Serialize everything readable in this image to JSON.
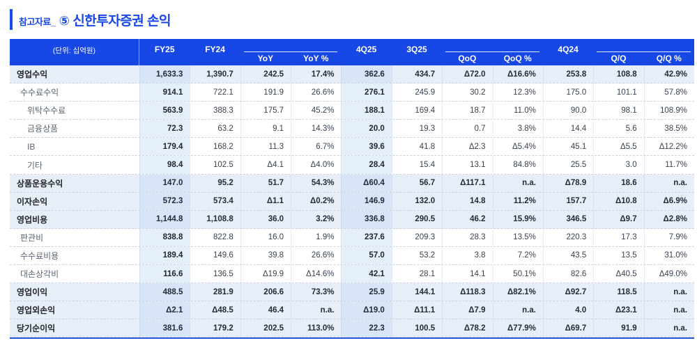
{
  "title": {
    "prefix": "참고자료_",
    "badge": "⑤",
    "main": "신한투자증권 손익"
  },
  "colors": {
    "accent": "#1747e5",
    "row_highlight": "#e8eef8",
    "column_tint": "#dbe8f7",
    "row_border": "#c9d3e0"
  },
  "table": {
    "unit_label": "(단위: 십억원)",
    "header_cells": [
      {
        "type": "plain",
        "labels": [
          "FY25"
        ]
      },
      {
        "type": "plain",
        "labels": [
          "FY24"
        ]
      },
      {
        "type": "group",
        "labels": [
          "YoY",
          "YoY %"
        ]
      },
      {
        "type": "plain",
        "labels": [
          "4Q25"
        ]
      },
      {
        "type": "plain",
        "labels": [
          "3Q25"
        ]
      },
      {
        "type": "group",
        "labels": [
          "QoQ",
          "QoQ %"
        ]
      },
      {
        "type": "plain",
        "labels": [
          "4Q24"
        ]
      },
      {
        "type": "group",
        "labels": [
          "Q/Q",
          "Q/Q %"
        ]
      }
    ],
    "column_keys": [
      "fy25",
      "fy24",
      "yoy",
      "yoy-pct",
      "4q25",
      "3q25",
      "qoq",
      "qoq-pct",
      "4q24",
      "qq",
      "qq-pct"
    ],
    "tinted_column_indexes": [
      0,
      4
    ],
    "rows": [
      {
        "label": "영업수익",
        "indent": 0,
        "highlight": true,
        "values": [
          "1,633.3",
          "1,390.7",
          "242.5",
          "17.4%",
          "362.6",
          "434.7",
          "Δ72.0",
          "Δ16.6%",
          "253.8",
          "108.8",
          "42.9%"
        ]
      },
      {
        "label": "수수료수익",
        "indent": 1,
        "highlight": false,
        "values": [
          "914.1",
          "722.1",
          "191.9",
          "26.6%",
          "276.1",
          "245.9",
          "30.2",
          "12.3%",
          "175.0",
          "101.1",
          "57.8%"
        ]
      },
      {
        "label": "위탁수수료",
        "indent": 2,
        "highlight": false,
        "values": [
          "563.9",
          "388.3",
          "175.7",
          "45.2%",
          "188.1",
          "169.4",
          "18.7",
          "11.0%",
          "90.0",
          "98.1",
          "108.9%"
        ]
      },
      {
        "label": "금융상품",
        "indent": 2,
        "highlight": false,
        "values": [
          "72.3",
          "63.2",
          "9.1",
          "14.3%",
          "20.0",
          "19.3",
          "0.7",
          "3.8%",
          "14.4",
          "5.6",
          "38.5%"
        ]
      },
      {
        "label": "IB",
        "indent": 2,
        "highlight": false,
        "values": [
          "179.4",
          "168.2",
          "11.3",
          "6.7%",
          "39.6",
          "41.8",
          "Δ2.3",
          "Δ5.4%",
          "45.1",
          "Δ5.5",
          "Δ12.2%"
        ]
      },
      {
        "label": "기타",
        "indent": 2,
        "highlight": false,
        "values": [
          "98.4",
          "102.5",
          "Δ4.1",
          "Δ4.0%",
          "28.4",
          "15.4",
          "13.1",
          "84.8%",
          "25.5",
          "3.0",
          "11.7%"
        ]
      },
      {
        "label": "상품운용수익",
        "indent": 0,
        "highlight": true,
        "values": [
          "147.0",
          "95.2",
          "51.7",
          "54.3%",
          "Δ60.4",
          "56.7",
          "Δ117.1",
          "n.a.",
          "Δ78.9",
          "18.6",
          "n.a."
        ]
      },
      {
        "label": "이자손익",
        "indent": 0,
        "highlight": true,
        "values": [
          "572.3",
          "573.4",
          "Δ1.1",
          "Δ0.2%",
          "146.9",
          "132.0",
          "14.8",
          "11.2%",
          "157.7",
          "Δ10.8",
          "Δ6.9%"
        ]
      },
      {
        "label": "영업비용",
        "indent": 0,
        "highlight": true,
        "values": [
          "1,144.8",
          "1,108.8",
          "36.0",
          "3.2%",
          "336.8",
          "290.5",
          "46.2",
          "15.9%",
          "346.5",
          "Δ9.7",
          "Δ2.8%"
        ]
      },
      {
        "label": "판관비",
        "indent": 1,
        "highlight": false,
        "values": [
          "838.8",
          "822.8",
          "16.0",
          "1.9%",
          "237.6",
          "209.3",
          "28.3",
          "13.5%",
          "220.3",
          "17.3",
          "7.9%"
        ]
      },
      {
        "label": "수수료비용",
        "indent": 1,
        "highlight": false,
        "values": [
          "189.4",
          "149.6",
          "39.8",
          "26.6%",
          "57.0",
          "53.2",
          "3.8",
          "7.2%",
          "43.5",
          "13.5",
          "31.0%"
        ]
      },
      {
        "label": "대손상각비",
        "indent": 1,
        "highlight": false,
        "values": [
          "116.6",
          "136.5",
          "Δ19.9",
          "Δ14.6%",
          "42.1",
          "28.1",
          "14.1",
          "50.1%",
          "82.6",
          "Δ40.5",
          "Δ49.0%"
        ]
      },
      {
        "label": "영업이익",
        "indent": 0,
        "highlight": true,
        "values": [
          "488.5",
          "281.9",
          "206.6",
          "73.3%",
          "25.9",
          "144.1",
          "Δ118.3",
          "Δ82.1%",
          "Δ92.7",
          "118.5",
          "n.a."
        ]
      },
      {
        "label": "영업외손익",
        "indent": 0,
        "highlight": true,
        "values": [
          "Δ2.1",
          "Δ48.5",
          "46.4",
          "n.a.",
          "Δ19.0",
          "Δ11.1",
          "Δ7.9",
          "n.a.",
          "4.0",
          "Δ23.1",
          "n.a."
        ]
      },
      {
        "label": "당기순이익",
        "indent": 0,
        "highlight": true,
        "values": [
          "381.6",
          "179.2",
          "202.5",
          "113.0%",
          "22.3",
          "100.5",
          "Δ78.2",
          "Δ77.9%",
          "Δ69.7",
          "91.9",
          "n.a."
        ]
      }
    ]
  }
}
